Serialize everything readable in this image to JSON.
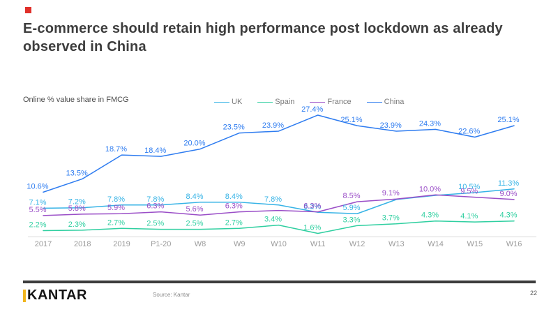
{
  "slide": {
    "accent_color": "#e0302a",
    "title_line1": "E-commerce should retain high performance post lockdown as already",
    "title_line2": "observed in China"
  },
  "chart_data": {
    "type": "line",
    "title": "Online % value share in FMCG",
    "categories": [
      "2017",
      "2018",
      "2019",
      "P1-20",
      "W8",
      "W9",
      "W10",
      "W11",
      "W12",
      "W13",
      "W14",
      "W15",
      "W16"
    ],
    "ylim": [
      0,
      30
    ],
    "grid": false,
    "legend_position": "top-center",
    "series": [
      {
        "name": "UK",
        "color": "#36b3e6",
        "values": [
          7.1,
          7.2,
          7.8,
          7.8,
          8.4,
          8.4,
          7.8,
          6.2,
          5.9,
          9.0,
          9.9,
          10.5,
          11.3
        ],
        "labels": [
          "7.1%",
          "7.2%",
          "7.8%",
          "7.8%",
          "8.4%",
          "8.4%",
          "7.8%",
          "6.2%",
          "5.9%",
          null,
          null,
          "10.5%",
          "11.3%"
        ]
      },
      {
        "name": "Spain",
        "color": "#2fcfa0",
        "values": [
          2.2,
          2.3,
          2.7,
          2.5,
          2.5,
          2.7,
          3.4,
          1.6,
          3.3,
          3.7,
          4.3,
          4.1,
          4.3
        ],
        "labels": [
          "2.2%",
          "2.3%",
          "2.7%",
          "2.5%",
          "2.5%",
          "2.7%",
          "3.4%",
          "1.6%",
          "3.3%",
          "3.7%",
          "4.3%",
          "4.1%",
          "4.3%"
        ]
      },
      {
        "name": "France",
        "color": "#9a4ec7",
        "values": [
          5.5,
          5.8,
          5.9,
          6.3,
          5.6,
          6.3,
          6.6,
          6.3,
          8.5,
          9.1,
          10.0,
          9.5,
          9.0
        ],
        "labels": [
          "5.5%",
          "5.8%",
          "5.9%",
          "6.3%",
          "5.6%",
          "6.3%",
          null,
          "6.3%",
          "8.5%",
          "9.1%",
          "10.0%",
          "9.5%",
          "9.0%"
        ]
      },
      {
        "name": "China",
        "color": "#2e7cf0",
        "values": [
          10.6,
          13.5,
          18.7,
          18.4,
          20.0,
          23.5,
          23.9,
          27.4,
          25.1,
          23.9,
          24.3,
          22.6,
          25.1
        ],
        "labels": [
          "10.6%",
          "13.5%",
          "18.7%",
          "18.4%",
          "20.0%",
          "23.5%",
          "23.9%",
          "27.4%",
          "25.1%",
          "23.9%",
          "24.3%",
          "22.6%",
          "25.1%"
        ]
      }
    ]
  },
  "footer": {
    "logo_text": "KANTAR",
    "logo_accent_color": "#f0b51e",
    "source": "Source: Kantar",
    "page_number": "22"
  }
}
